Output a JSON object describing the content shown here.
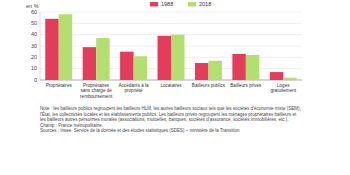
{
  "chart_data": {
    "type": "bar",
    "ylabel": "en %",
    "categories": [
      "Propriétaires",
      "Propriétaires sans charge de remboursement",
      "Accédants à la propriété",
      "Locataires",
      "Bailleurs publics",
      "Bailleurs privés",
      "Logés gratuitement"
    ],
    "series": [
      {
        "name": "1988",
        "color": "#e63c5c",
        "values": [
          54,
          29,
          25,
          39,
          15,
          23,
          7
        ]
      },
      {
        "name": "2018",
        "color": "#b3df6f",
        "values": [
          58,
          37,
          21,
          40,
          17,
          22,
          2
        ]
      }
    ],
    "ylim": [
      0,
      60
    ],
    "yticks": [
      0,
      10,
      20,
      30,
      40,
      50,
      60
    ],
    "grid": true,
    "legend": "top",
    "annotations": [
      "Note : les bailleurs publics regroupent les bailleurs HLM, les autres bailleurs sociaux tels que les sociétés d'économie mixte (SEM), l'État, les collectivités locales et les établissements publics. Les bailleurs privés regroupent les ménages propriétaires bailleurs et les bailleurs autres personnes morales (associations, mutuelles, banques, sociétés d'assurance, sociétés immobilières, etc.).",
      "Champ : France métropolitaine.",
      "Sources : Insee, Service de la donnée et des études statistiques (SDES) – ministère de la Transition"
    ]
  }
}
